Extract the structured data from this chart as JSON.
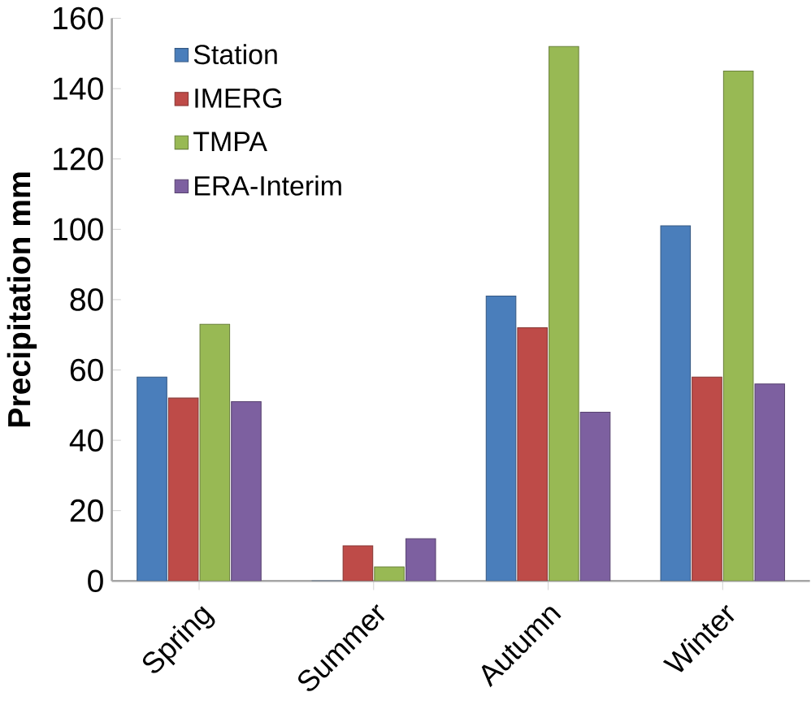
{
  "chart_data": {
    "type": "bar",
    "ylabel": "Precipitation mm",
    "categories": [
      "Spring",
      "Summer",
      "Autumn",
      "Winter"
    ],
    "series": [
      {
        "name": "Station",
        "color": "#4a7ebb",
        "values": [
          58,
          0,
          81,
          101
        ]
      },
      {
        "name": "IMERG",
        "color": "#be4b48",
        "values": [
          52,
          10,
          72,
          58
        ]
      },
      {
        "name": "TMPA",
        "color": "#98b954",
        "values": [
          73,
          4,
          152,
          145
        ]
      },
      {
        "name": "ERA-Interim",
        "color": "#7d60a0",
        "values": [
          51,
          12,
          48,
          56
        ]
      }
    ],
    "ylim": [
      0,
      160
    ],
    "yticks": [
      0,
      20,
      40,
      60,
      80,
      100,
      120,
      140,
      160
    ],
    "legend": "top left",
    "grid": false
  }
}
